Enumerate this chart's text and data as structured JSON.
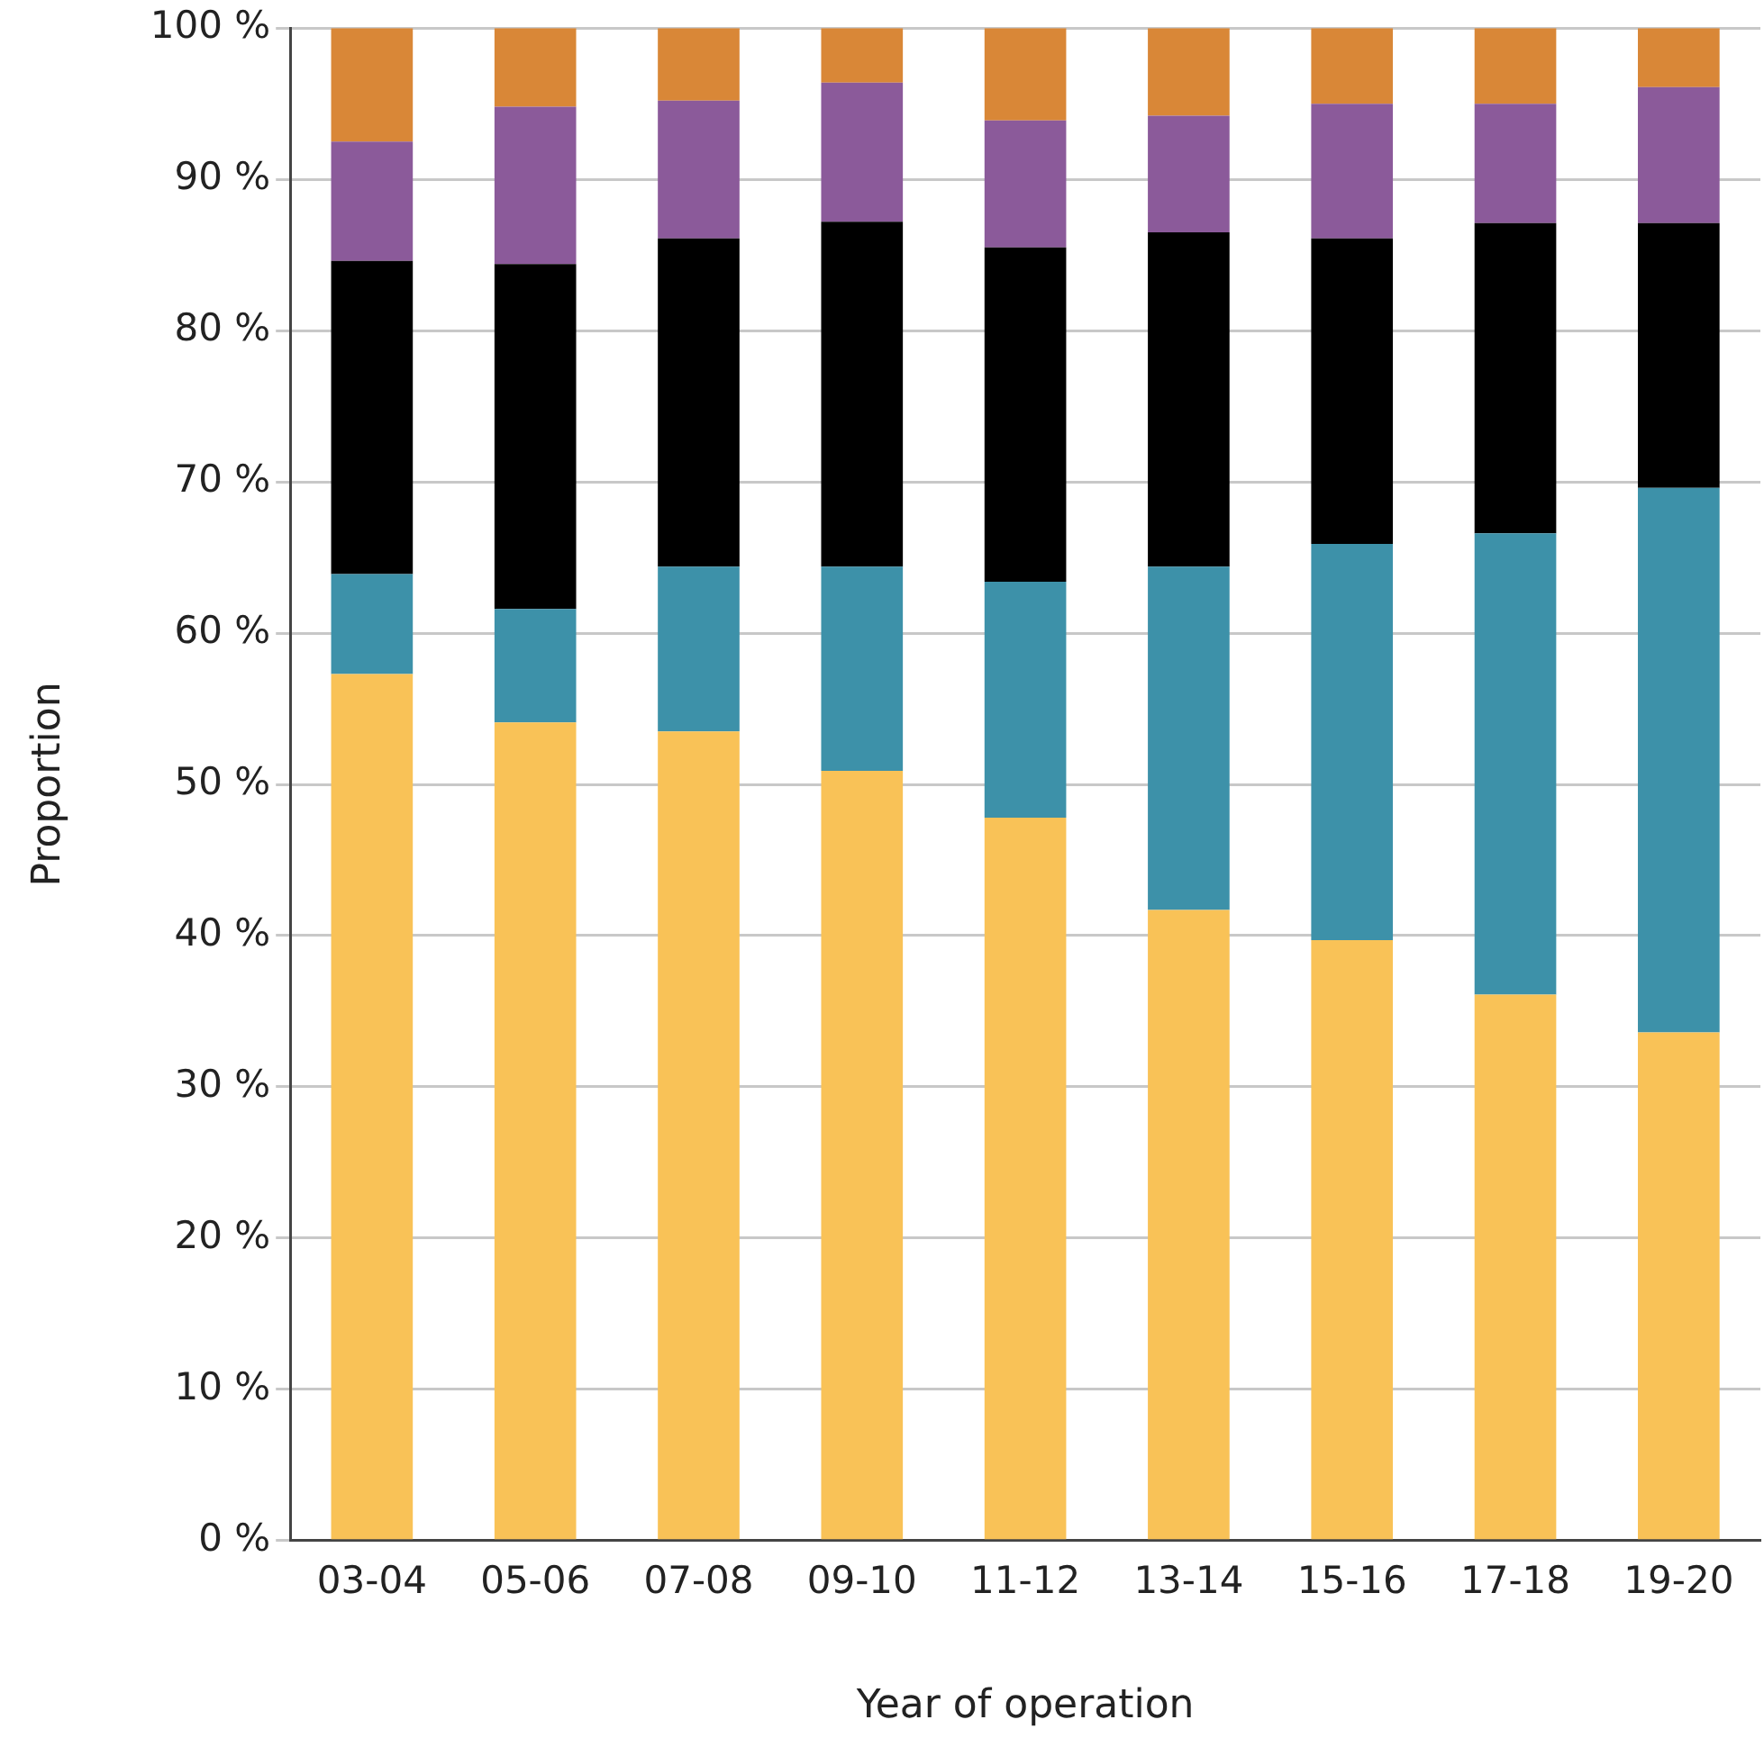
{
  "chart_data": {
    "type": "bar",
    "stacked": true,
    "xlabel": "Year of operation",
    "ylabel": "Proportion",
    "categories": [
      "03-04",
      "05-06",
      "07-08",
      "09-10",
      "11-12",
      "13-14",
      "15-16",
      "17-18",
      "19-20"
    ],
    "series": [
      {
        "color": "#f9c257",
        "values": [
          57.3,
          54.1,
          53.5,
          50.9,
          47.8,
          41.7,
          39.7,
          36.1,
          33.6
        ]
      },
      {
        "color": "#3d91a9",
        "values": [
          6.6,
          7.5,
          10.9,
          13.5,
          15.6,
          22.7,
          26.2,
          30.5,
          36.0
        ]
      },
      {
        "color": "#000000",
        "values": [
          20.7,
          22.8,
          21.7,
          22.8,
          22.1,
          22.1,
          20.2,
          20.5,
          17.5
        ]
      },
      {
        "color": "#8b5a9a",
        "values": [
          7.9,
          10.4,
          9.1,
          9.2,
          8.4,
          7.7,
          8.9,
          7.9,
          9.0
        ]
      },
      {
        "color": "#d98737",
        "values": [
          7.5,
          5.2,
          4.8,
          3.6,
          6.1,
          5.8,
          5.0,
          5.0,
          3.9
        ]
      }
    ],
    "ylim": [
      0,
      100
    ],
    "yticks": [
      {
        "value": 0,
        "label": "0 %"
      },
      {
        "value": 10,
        "label": "10 %"
      },
      {
        "value": 20,
        "label": "20 %"
      },
      {
        "value": 30,
        "label": "30 %"
      },
      {
        "value": 40,
        "label": "40 %"
      },
      {
        "value": 50,
        "label": "50 %"
      },
      {
        "value": 60,
        "label": "60 %"
      },
      {
        "value": 70,
        "label": "70 %"
      },
      {
        "value": 80,
        "label": "80 %"
      },
      {
        "value": 90,
        "label": "90 %"
      },
      {
        "value": 100,
        "label": "100 %"
      }
    ],
    "grid": "y",
    "legend": false
  }
}
